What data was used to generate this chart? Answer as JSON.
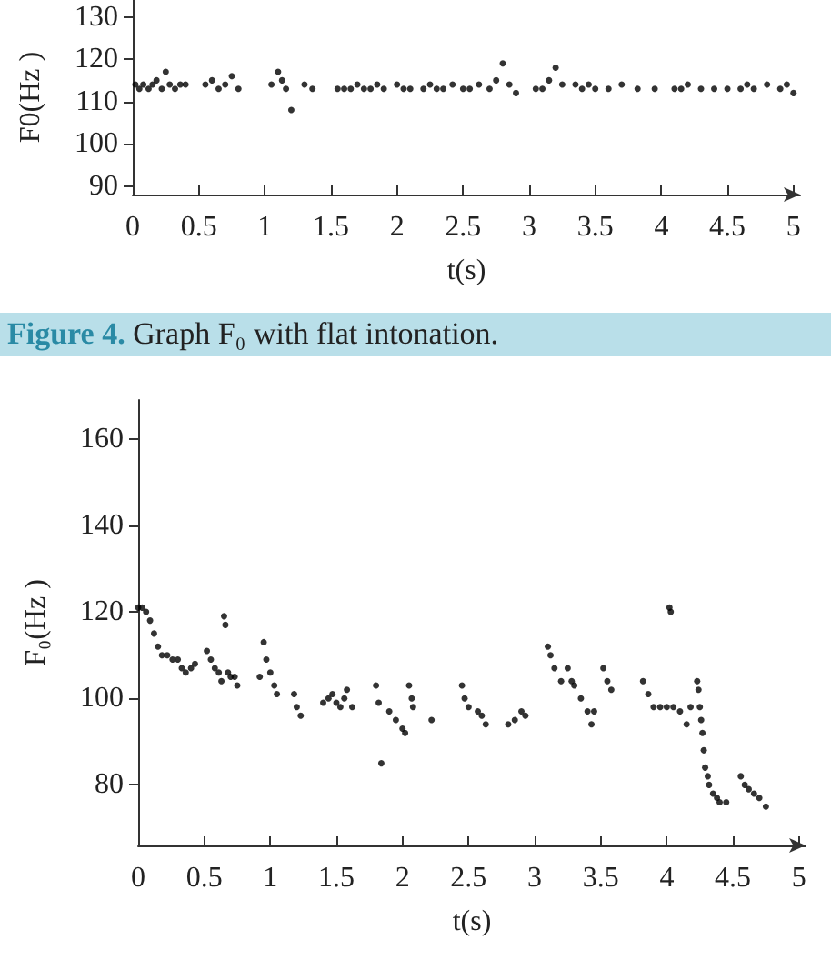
{
  "chart_data": [
    {
      "type": "scatter",
      "xlabel": "t(s)",
      "ylabel": "F0(Hz )",
      "annotations": [
        "Figure 4. Graph F₀ with flat intonation."
      ],
      "xlim": [
        0,
        5.05
      ],
      "ylim": [
        88,
        134
      ],
      "xticks": [
        0,
        0.5,
        1,
        1.5,
        2,
        2.5,
        3,
        3.5,
        4,
        4.5,
        5
      ],
      "yticks": [
        90,
        100,
        110,
        120,
        130
      ],
      "grid": false,
      "marker": "circle",
      "legend": false,
      "series": [
        {
          "color": "#000000",
          "x": [
            0.02,
            0.05,
            0.08,
            0.12,
            0.15,
            0.18,
            0.22,
            0.25,
            0.28,
            0.32,
            0.36,
            0.4,
            0.55,
            0.6,
            0.65,
            0.7,
            0.75,
            0.8,
            1.05,
            1.1,
            1.13,
            1.16,
            1.2,
            1.3,
            1.36,
            1.55,
            1.6,
            1.65,
            1.7,
            1.75,
            1.8,
            1.85,
            1.9,
            2.0,
            2.05,
            2.1,
            2.2,
            2.25,
            2.3,
            2.35,
            2.42,
            2.5,
            2.55,
            2.62,
            2.7,
            2.75,
            2.8,
            2.85,
            2.9,
            3.05,
            3.1,
            3.15,
            3.2,
            3.25,
            3.35,
            3.4,
            3.45,
            3.5,
            3.6,
            3.7,
            3.82,
            3.95,
            4.1,
            4.15,
            4.2,
            4.3,
            4.4,
            4.5,
            4.6,
            4.65,
            4.7,
            4.8,
            4.9,
            4.95,
            5.0
          ],
          "values": [
            114,
            113,
            114,
            113,
            114,
            115,
            113,
            117,
            114,
            113,
            114,
            114,
            114,
            115,
            113,
            114,
            116,
            113,
            114,
            117,
            115,
            113,
            108,
            114,
            113,
            113,
            113,
            113,
            114,
            113,
            113,
            114,
            113,
            114,
            113,
            113,
            113,
            114,
            113,
            113,
            114,
            113,
            113,
            114,
            113,
            115,
            119,
            114,
            112,
            113,
            113,
            115,
            118,
            114,
            114,
            113,
            114,
            113,
            113,
            114,
            113,
            113,
            113,
            113,
            114,
            113,
            113,
            113,
            113,
            114,
            113,
            114,
            113,
            114,
            112
          ]
        }
      ]
    },
    {
      "type": "scatter",
      "xlabel": "t(s)",
      "ylabel": "F₀(Hz )",
      "xlim": [
        0,
        5.05
      ],
      "ylim": [
        66,
        169
      ],
      "xticks": [
        0,
        0.5,
        1,
        1.5,
        2,
        2.5,
        3,
        3.5,
        4,
        4.5,
        5
      ],
      "yticks": [
        80,
        100,
        120,
        140,
        160
      ],
      "grid": false,
      "marker": "circle",
      "legend": false,
      "series": [
        {
          "color": "#000000",
          "x": [
            0,
            0.03,
            0.06,
            0.09,
            0.12,
            0.15,
            0.18,
            0.22,
            0.26,
            0.3,
            0.33,
            0.36,
            0.4,
            0.43,
            0.52,
            0.55,
            0.58,
            0.61,
            0.63,
            0.65,
            0.66,
            0.68,
            0.7,
            0.73,
            0.75,
            0.92,
            0.95,
            0.97,
            1.0,
            1.03,
            1.05,
            1.18,
            1.2,
            1.23,
            1.4,
            1.44,
            1.47,
            1.5,
            1.53,
            1.56,
            1.58,
            1.62,
            1.8,
            1.82,
            1.84,
            1.9,
            1.95,
            2.0,
            2.02,
            2.05,
            2.07,
            2.08,
            2.22,
            2.45,
            2.47,
            2.5,
            2.57,
            2.6,
            2.63,
            2.8,
            2.85,
            2.9,
            2.93,
            3.1,
            3.12,
            3.15,
            3.2,
            3.25,
            3.28,
            3.3,
            3.35,
            3.4,
            3.43,
            3.45,
            3.52,
            3.55,
            3.58,
            3.82,
            3.86,
            3.9,
            3.95,
            4.0,
            4.02,
            4.03,
            4.05,
            4.1,
            4.15,
            4.18,
            4.23,
            4.24,
            4.25,
            4.26,
            4.27,
            4.28,
            4.29,
            4.31,
            4.32,
            4.35,
            4.38,
            4.4,
            4.45,
            4.56,
            4.59,
            4.62,
            4.66,
            4.7,
            4.75
          ],
          "values": [
            121,
            121,
            120,
            118,
            115,
            112,
            110,
            110,
            109,
            109,
            107,
            106,
            107,
            108,
            111,
            109,
            107,
            106,
            104,
            119,
            117,
            106,
            105,
            105,
            103,
            105,
            113,
            109,
            106,
            103,
            101,
            101,
            98,
            96,
            99,
            100,
            101,
            99,
            98,
            100,
            102,
            98,
            103,
            99,
            85,
            97,
            95,
            93,
            92,
            103,
            100,
            98,
            95,
            103,
            100,
            98,
            97,
            96,
            94,
            94,
            95,
            97,
            96,
            112,
            110,
            107,
            104,
            107,
            104,
            103,
            100,
            97,
            94,
            97,
            107,
            104,
            102,
            104,
            101,
            98,
            98,
            98,
            121,
            120,
            98,
            97,
            94,
            98,
            104,
            102,
            98,
            95,
            92,
            88,
            84,
            82,
            80,
            78,
            77,
            76,
            76,
            82,
            80,
            79,
            78,
            77,
            75
          ]
        }
      ]
    }
  ]
}
